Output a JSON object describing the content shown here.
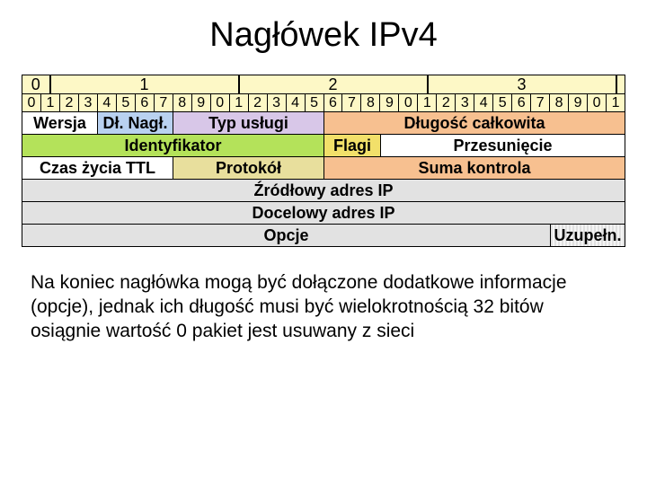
{
  "title": "Nagłówek IPv4",
  "colors": {
    "ruler_bg": "#fdf8c6",
    "white": "#ffffff",
    "blue": "#b9d1f0",
    "lavender": "#d8c7e8",
    "orange": "#f7c090",
    "green": "#b4e25a",
    "yellow": "#f2e06a",
    "sand": "#e8df9d",
    "gray": "#e2e2e2"
  },
  "ruler": {
    "byte_labels": [
      "0",
      "1",
      "2",
      "3"
    ],
    "bit_labels": [
      "0",
      "1",
      "2",
      "3",
      "4",
      "5",
      "6",
      "7",
      "8",
      "9",
      "0",
      "1",
      "2",
      "3",
      "4",
      "5",
      "6",
      "7",
      "8",
      "9",
      "0",
      "1",
      "2",
      "3",
      "4",
      "5",
      "6",
      "7",
      "8",
      "9",
      "0",
      "1"
    ]
  },
  "rows": [
    [
      {
        "label": "Wersja",
        "bits": 4,
        "color": "c-white"
      },
      {
        "label": "Dł. Nagł.",
        "bits": 4,
        "color": "c-blue"
      },
      {
        "label": "Typ usługi",
        "bits": 8,
        "color": "c-lav"
      },
      {
        "label": "Długość całkowita",
        "bits": 16,
        "color": "c-orange"
      }
    ],
    [
      {
        "label": "Identyfikator",
        "bits": 16,
        "color": "c-green"
      },
      {
        "label": "Flagi",
        "bits": 3,
        "color": "c-yellow"
      },
      {
        "label": "Przesunięcie",
        "bits": 13,
        "color": "c-white"
      }
    ],
    [
      {
        "label": "Czas życia TTL",
        "bits": 8,
        "color": "c-white"
      },
      {
        "label": "Protokół",
        "bits": 8,
        "color": "c-sand"
      },
      {
        "label": "Suma kontrola",
        "bits": 16,
        "color": "c-orange"
      }
    ],
    [
      {
        "label": "Źródłowy adres IP",
        "bits": 32,
        "color": "c-gray"
      }
    ],
    [
      {
        "label": "Docelowy adres IP",
        "bits": 32,
        "color": "c-gray"
      }
    ],
    [
      {
        "label": "Opcje",
        "bits": 28,
        "color": "c-gray"
      },
      {
        "label": "Uzupełn.",
        "bits": 4,
        "color": "c-hatch"
      }
    ]
  ],
  "paragraphs": [
    "Na koniec nagłówka mogą być dołączone dodatkowe informacje (opcje), jednak ich długość musi być wielokrotnością 32 bitów",
    "osiągnie wartość 0 pakiet jest usuwany z sieci"
  ]
}
